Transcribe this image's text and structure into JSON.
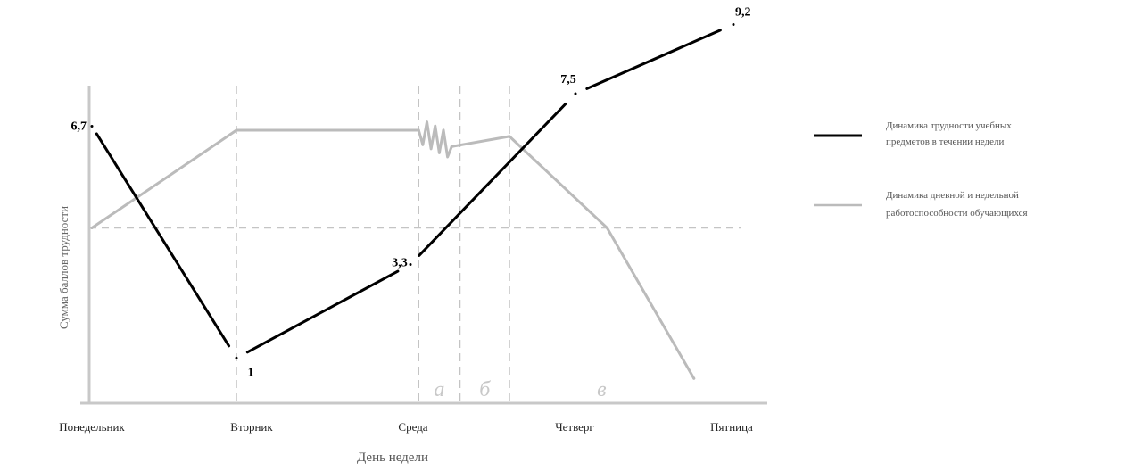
{
  "chart_data": {
    "type": "line",
    "categories": [
      "Понедельник",
      "Вторник",
      "Среда",
      "Четверг",
      "Пятница"
    ],
    "xlabel": "День недели",
    "ylabel": "Сумма баллов трудности",
    "series": [
      {
        "name": "Динамика трудности учебных предметов в течении недели",
        "color": "#000000",
        "points": [
          {
            "day": 0,
            "value": 6.7,
            "label": "6,7"
          },
          {
            "day": 1,
            "value": 1,
            "label": "1"
          },
          {
            "day": 2,
            "value": 3.3,
            "label": "3,3"
          },
          {
            "day": 3,
            "value": 7.5,
            "label": "7,5"
          },
          {
            "day": 4,
            "value": 9.2,
            "label": "9,2"
          }
        ]
      },
      {
        "name": "Динамика дневной и недельной работоспособности обучающихся",
        "color": "#bbbbbb",
        "points": [
          {
            "day": 0,
            "value": 4.2
          },
          {
            "day": 1,
            "value": 6.6
          },
          {
            "day": 2.05,
            "value": 6.6
          },
          {
            "day": 2.25,
            "value": 6.2
          },
          {
            "day": 2.6,
            "value": 6.45
          },
          {
            "day": 3.2,
            "value": 4.2
          },
          {
            "day": 3.75,
            "value": 0.5
          }
        ]
      }
    ],
    "reference_line": {
      "value": 4.2,
      "style": "dashed"
    },
    "zones": [
      {
        "label": "а",
        "start": 2.05,
        "end": 2.3
      },
      {
        "label": "б",
        "start": 2.3,
        "end": 2.6
      },
      {
        "label": "в",
        "start": 2.6,
        "end": 3.75
      }
    ],
    "vertical_guides": [
      1,
      2.05,
      2.3,
      2.6
    ],
    "legend_position": "right"
  }
}
